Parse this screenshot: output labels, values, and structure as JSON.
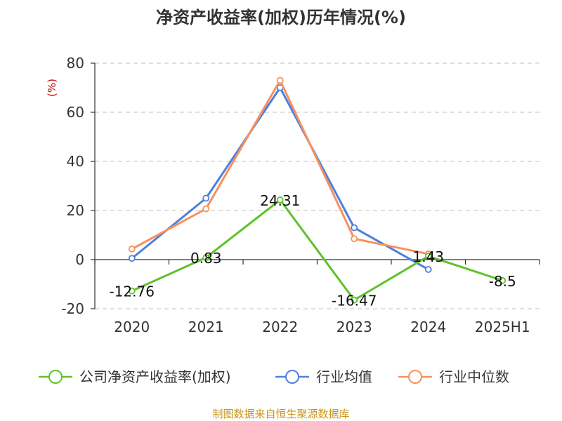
{
  "chart_data": {
    "type": "line",
    "title": "净资产收益率(加权)历年情况(%)",
    "ylabel": "(%)",
    "categories": [
      "2020",
      "2021",
      "2022",
      "2023",
      "2024",
      "2025H1"
    ],
    "ylim": [
      -20,
      80
    ],
    "yticks": [
      80,
      60,
      40,
      20,
      0,
      -20
    ],
    "grid": true,
    "legend_position": "bottom",
    "series": [
      {
        "name": "公司净资产收益率(加权)",
        "color": "#5ec22a",
        "values": [
          -12.76,
          0.83,
          24.31,
          -16.47,
          1.43,
          -8.5
        ],
        "labels": [
          "-12.76",
          "0.83",
          "24.31",
          "-16.47",
          "1.43",
          "-8.5"
        ]
      },
      {
        "name": "行业均值",
        "color": "#4e7fe0",
        "values": [
          0.5,
          25,
          70,
          13,
          -4,
          null
        ]
      },
      {
        "name": "行业中位数",
        "color": "#f7915a",
        "values": [
          4.3,
          20.7,
          73,
          8.5,
          2.3,
          null
        ]
      }
    ]
  },
  "footer": {
    "source": "制图数据来自恒生聚源数据库"
  }
}
